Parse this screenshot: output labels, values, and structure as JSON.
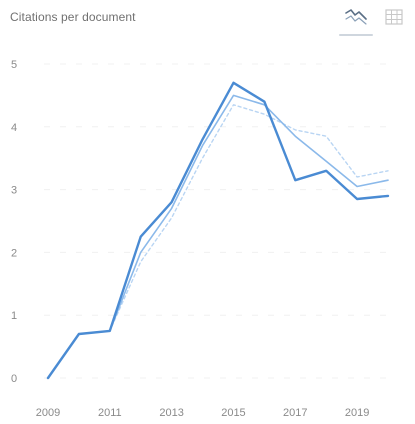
{
  "header": {
    "title": "Citations per document"
  },
  "toolbar": {
    "tabs": [
      {
        "icon": "line-chart-icon",
        "active": true
      },
      {
        "icon": "table-grid-icon",
        "active": false
      }
    ]
  },
  "chart_data": {
    "type": "line",
    "title": "Citations per document",
    "xlabel": "",
    "ylabel": "",
    "x": [
      2009,
      2010,
      2011,
      2012,
      2013,
      2014,
      2015,
      2016,
      2017,
      2018,
      2019,
      2020
    ],
    "xticks": [
      {
        "value": 2009,
        "label": "2009"
      },
      {
        "value": 2011,
        "label": "2011"
      },
      {
        "value": 2013,
        "label": "2013"
      },
      {
        "value": 2015,
        "label": "2015"
      },
      {
        "value": 2017,
        "label": "2017"
      },
      {
        "value": 2019,
        "label": "2019"
      }
    ],
    "yticks": [
      {
        "value": 0,
        "label": "0"
      },
      {
        "value": 1,
        "label": "1"
      },
      {
        "value": 2,
        "label": "2"
      },
      {
        "value": 3,
        "label": "3"
      },
      {
        "value": 4,
        "label": "4"
      },
      {
        "value": 5,
        "label": "5"
      }
    ],
    "ylim": [
      0,
      5
    ],
    "grid": true,
    "series": [
      {
        "values": [
          0,
          0.7,
          0.75,
          2.25,
          2.8,
          3.8,
          4.7,
          4.4,
          3.15,
          3.3,
          2.85,
          2.9
        ],
        "color": "#4a8bd3",
        "style": "solid-strong"
      },
      {
        "values": [
          0,
          0.7,
          0.75,
          2.0,
          2.7,
          3.7,
          4.5,
          4.35,
          3.85,
          3.45,
          3.05,
          3.15
        ],
        "color": "#8bb9ea",
        "style": "solid-light"
      },
      {
        "values": [
          0,
          0.7,
          0.75,
          1.85,
          2.55,
          3.5,
          4.35,
          4.2,
          3.95,
          3.85,
          3.2,
          3.3
        ],
        "color": "#b9d5f3",
        "style": "dashed-light"
      }
    ]
  }
}
